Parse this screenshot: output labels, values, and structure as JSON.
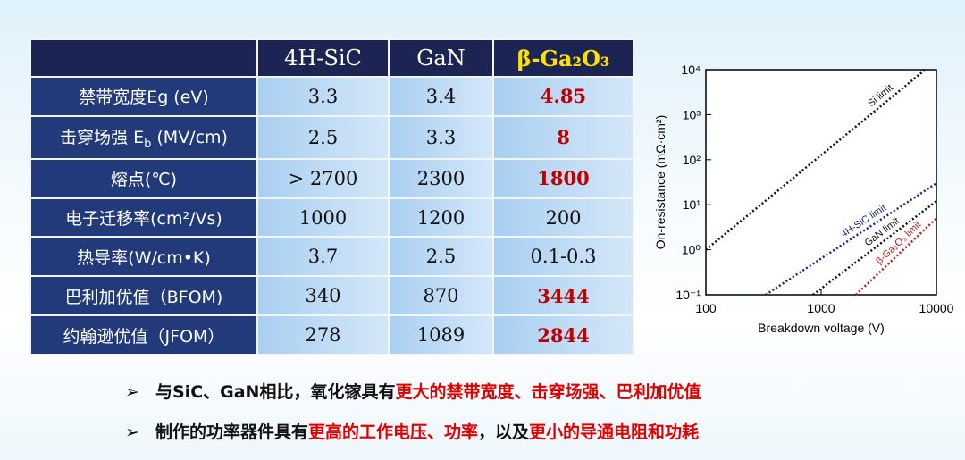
{
  "table": {
    "header": [
      "4H-SiC",
      "GaN",
      "β-Ga₂O₃"
    ],
    "header_highlight_color": "#ffe000",
    "highlight_color": "#c00000",
    "rows": [
      {
        "label": [
          {
            "text": "禁带宽度Eg (eV)"
          }
        ],
        "cells": [
          "3.3",
          "3.4",
          "4.85"
        ],
        "highlight": true
      },
      {
        "label": [
          {
            "text": "击穿场强 E"
          },
          {
            "text": "b",
            "sub": true
          },
          {
            "text": " (MV/cm)"
          }
        ],
        "cells": [
          "2.5",
          "3.3",
          "8"
        ],
        "highlight": true
      },
      {
        "label": [
          {
            "text": "熔点(℃)"
          }
        ],
        "cells": [
          "> 2700",
          "2300",
          "1800"
        ],
        "highlight": true
      },
      {
        "label": [
          {
            "text": "电子迁移率(cm²/Vs)"
          }
        ],
        "cells": [
          "1000",
          "1200",
          "200"
        ],
        "highlight": false
      },
      {
        "label": [
          {
            "text": "热导率(W/cm•K)"
          }
        ],
        "cells": [
          "3.7",
          "2.5",
          "0.1-0.3"
        ],
        "highlight": false
      },
      {
        "label": [
          {
            "text": "巴利加优值（BFOM)"
          }
        ],
        "cells": [
          "340",
          "870",
          "3444"
        ],
        "highlight": true
      },
      {
        "label": [
          {
            "text": "约翰逊优值（JFOM）"
          }
        ],
        "cells": [
          "278",
          "1089",
          "2844"
        ],
        "highlight": true
      }
    ]
  },
  "chart_data": {
    "type": "line",
    "log_x": true,
    "log_y": true,
    "x_label": "Breakdown voltage (V)",
    "y_label": "On-resistance (mΩ·cm²)",
    "xlim": [
      100,
      10000
    ],
    "ylim": [
      0.1,
      10000
    ],
    "xticks": [
      100,
      1000,
      10000
    ],
    "yticks": [
      {
        "value": 0.1,
        "label": "10⁻¹"
      },
      {
        "value": 1,
        "label": "10⁰"
      },
      {
        "value": 10,
        "label": "10¹"
      },
      {
        "value": 100,
        "label": "10²"
      },
      {
        "value": 1000,
        "label": "10³"
      },
      {
        "value": 10000,
        "label": "10⁴"
      }
    ],
    "series": [
      {
        "name": "Si limit",
        "color": "#111111",
        "x": [
          100,
          8000
        ],
        "values": [
          1,
          10000
        ]
      },
      {
        "name": "4H-SiC limit",
        "color": "#1a237e",
        "x": [
          330,
          10000
        ],
        "values": [
          0.1,
          30
        ]
      },
      {
        "name": "GaN limit",
        "color": "#111111",
        "x": [
          850,
          10000
        ],
        "values": [
          0.1,
          12
        ]
      },
      {
        "name": "β-Ga₂O₃ limit",
        "color": "#b71c1c",
        "x": [
          2000,
          10000
        ],
        "values": [
          0.1,
          5
        ]
      }
    ]
  },
  "bullets": {
    "marker": "➢",
    "emphasis_color": "#e00000",
    "items": [
      [
        {
          "text": "与SiC、GaN相比，氧化镓具有"
        },
        {
          "text": "更大的禁带宽度、击穿场强、巴利加优值",
          "emphasis": true
        }
      ],
      [
        {
          "text": "制作的功率器件具有"
        },
        {
          "text": "更高的工作电压、功率",
          "emphasis": true
        },
        {
          "text": "，以及"
        },
        {
          "text": "更小的导通电阻和功耗",
          "emphasis": true
        }
      ]
    ]
  }
}
